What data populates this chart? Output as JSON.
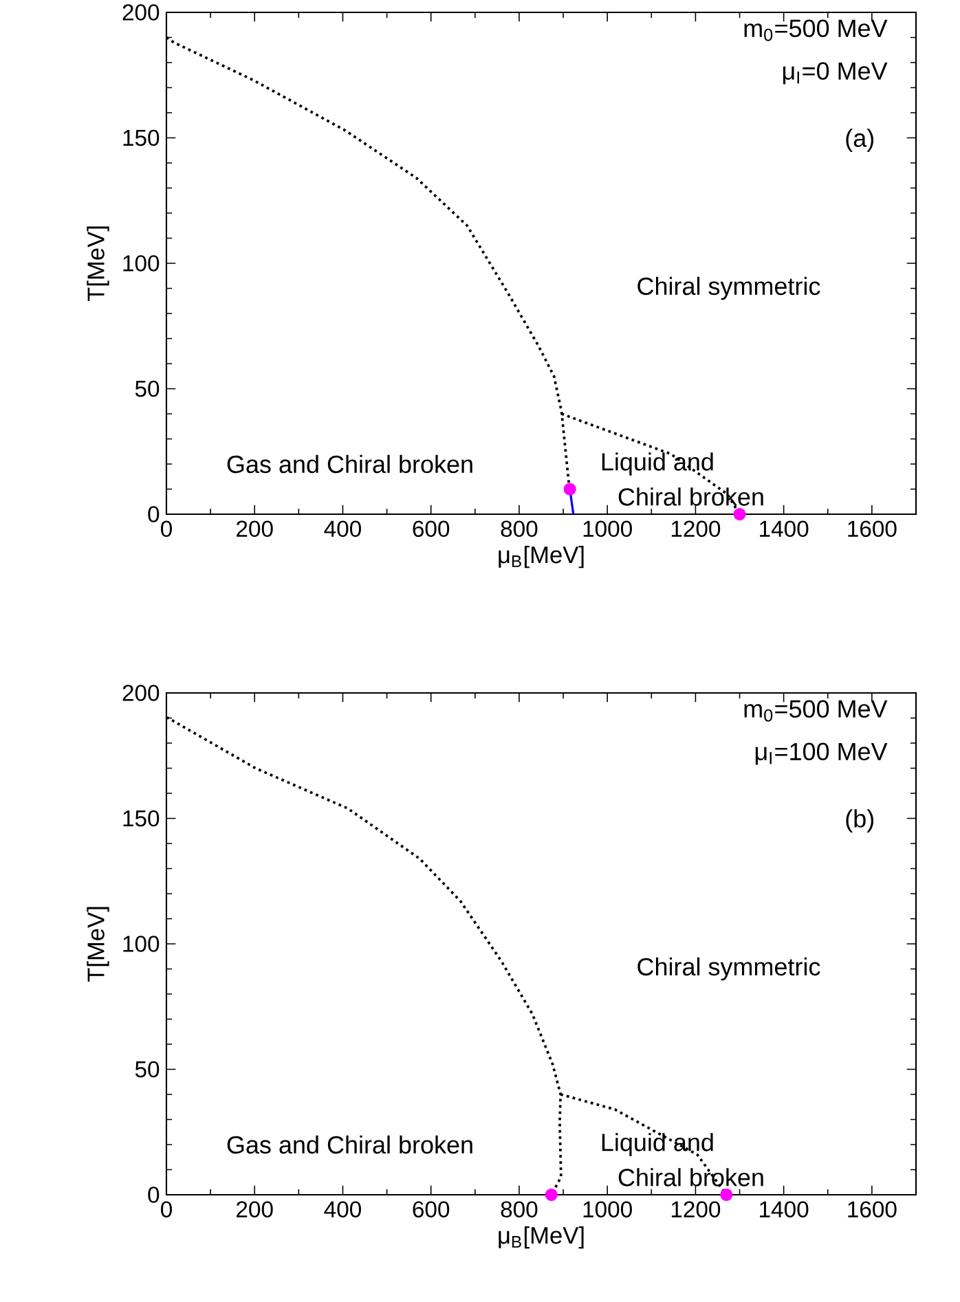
{
  "chart_data": [
    {
      "type": "line",
      "xlabel": "μ$_{B}$[MeV]",
      "ylabel": "T[MeV]",
      "xlim": [
        0,
        1700
      ],
      "ylim": [
        0,
        200
      ],
      "xticks": [
        0,
        200,
        400,
        600,
        800,
        1000,
        1200,
        1400,
        1600
      ],
      "yticks": [
        0,
        50,
        100,
        150,
        200
      ],
      "annotations": [
        "m$_{0}$=500 MeV",
        "μ$_{I}$=0 MeV",
        "(a)",
        "Chiral symmetric",
        "Gas and Chiral broken",
        "Liquid and",
        "Chiral broken"
      ],
      "series": [
        {
          "color": "#000000",
          "line_style": "dotted",
          "marker": "none",
          "x": [
            0,
            17,
            197,
            405,
            567,
            682,
            775,
            844,
            879,
            896,
            913
          ],
          "values": [
            190,
            188,
            173,
            153,
            134,
            115,
            88,
            67,
            55,
            41,
            12
          ]
        },
        {
          "color": "#000000",
          "line_style": "dotted",
          "marker": "none",
          "x": [
            896,
            1144,
            1272,
            1300
          ],
          "values": [
            40,
            24,
            8,
            0
          ]
        },
        {
          "color": "#0000ff",
          "line_style": "solid",
          "marker": "none",
          "x": [
            915,
            923
          ],
          "values": [
            10,
            0
          ]
        },
        {
          "type": "scatter",
          "color": "#ff00ff",
          "marker": "circle",
          "x": [
            915,
            1300
          ],
          "values": [
            10,
            0
          ]
        }
      ]
    },
    {
      "type": "line",
      "xlabel": "μ$_{B}$[MeV]",
      "ylabel": "T[MeV]",
      "xlim": [
        0,
        1700
      ],
      "ylim": [
        0,
        200
      ],
      "xticks": [
        0,
        200,
        400,
        600,
        800,
        1000,
        1200,
        1400,
        1600
      ],
      "yticks": [
        0,
        50,
        100,
        150,
        200
      ],
      "annotations": [
        "m$_{0}$=500 MeV",
        "μ$_{I}$=100 MeV",
        "(b)",
        "Chiral symmetric",
        "Gas and Chiral broken",
        "Liquid and",
        "Chiral broken"
      ],
      "series": [
        {
          "color": "#000000",
          "line_style": "dotted",
          "marker": "none",
          "x": [
            0,
            4,
            202,
            411,
            574,
            667,
            760,
            830,
            876,
            894,
            892,
            895,
            873
          ],
          "values": [
            190,
            190,
            170,
            154,
            134,
            117,
            93,
            72,
            52,
            40,
            29,
            7,
            0
          ]
        },
        {
          "color": "#000000",
          "line_style": "dotted",
          "marker": "none",
          "x": [
            894,
            1017,
            1204,
            1270
          ],
          "values": [
            40,
            34,
            16,
            0
          ]
        },
        {
          "type": "scatter",
          "color": "#ff00ff",
          "marker": "circle",
          "x": [
            873,
            1270
          ],
          "values": [
            0,
            0
          ]
        }
      ]
    }
  ]
}
